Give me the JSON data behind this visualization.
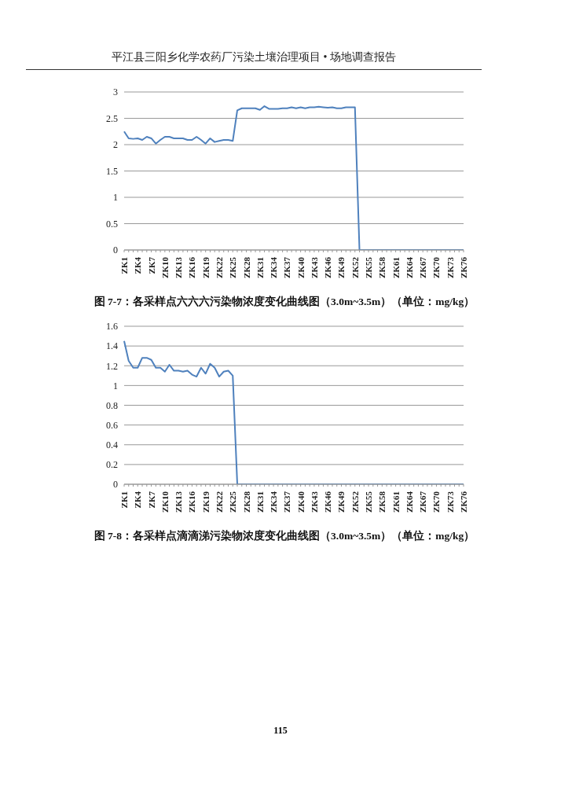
{
  "chart_data": [
    {
      "type": "line",
      "title": "图 7-7：各采样点六六六污染物浓度变化曲线图（3.0m~3.5m）（单位：mg/kg）",
      "annotations": [
        "平江县三阳乡化学农药厂污染土壤治理项目 • 场地调查报告"
      ],
      "categories": [
        "ZK1",
        null,
        null,
        "ZK4",
        null,
        null,
        "ZK7",
        null,
        null,
        "ZK10",
        null,
        null,
        "ZK13",
        null,
        null,
        "ZK16",
        null,
        null,
        "ZK19",
        null,
        null,
        "ZK22",
        null,
        null,
        "ZK25",
        null,
        null,
        "ZK28",
        null,
        null,
        "ZK31",
        null,
        null,
        "ZK34",
        null,
        null,
        "ZK37",
        null,
        null,
        "ZK40",
        null,
        null,
        "ZK43",
        null,
        null,
        "ZK46",
        null,
        null,
        "ZK49",
        null,
        null,
        "ZK52",
        null,
        null,
        "ZK55",
        null,
        null,
        "ZK58",
        null,
        null,
        "ZK61",
        null,
        null,
        "ZK64",
        null,
        null,
        "ZK67",
        null,
        null,
        "ZK70",
        null,
        null,
        "ZK73",
        null,
        null,
        "ZK76"
      ],
      "series": [
        {
          "color": "#4f81bd",
          "values": [
            2.25,
            2.12,
            2.11,
            2.12,
            2.09,
            2.15,
            2.12,
            2.02,
            2.09,
            2.15,
            2.15,
            2.12,
            2.12,
            2.12,
            2.09,
            2.09,
            2.15,
            2.09,
            2.02,
            2.12,
            2.05,
            2.07,
            2.09,
            2.09,
            2.07,
            2.65,
            2.69,
            2.69,
            2.69,
            2.69,
            2.66,
            2.73,
            2.68,
            2.68,
            2.68,
            2.69,
            2.69,
            2.71,
            2.69,
            2.71,
            2.69,
            2.71,
            2.71,
            2.72,
            2.71,
            2.7,
            2.71,
            2.69,
            2.69,
            2.71,
            2.71,
            2.71,
            0,
            0,
            0,
            0,
            0,
            0,
            0,
            0,
            0,
            0,
            0,
            0,
            0,
            0,
            0,
            0,
            0,
            0,
            0,
            0,
            0,
            0,
            0,
            0
          ]
        }
      ],
      "ylim": [
        0,
        3
      ],
      "yticks": [
        0,
        0.5,
        1,
        1.5,
        2,
        2.5,
        3
      ],
      "grid": "y",
      "legend": false,
      "marker": "none",
      "line_style": "solid"
    },
    {
      "type": "line",
      "title": "图 7-8：各采样点滴滴涕污染物浓度变化曲线图（3.0m~3.5m）（单位：mg/kg）",
      "annotations": [
        "115"
      ],
      "categories": [
        "ZK1",
        null,
        null,
        "ZK4",
        null,
        null,
        "ZK7",
        null,
        null,
        "ZK10",
        null,
        null,
        "ZK13",
        null,
        null,
        "ZK16",
        null,
        null,
        "ZK19",
        null,
        null,
        "ZK22",
        null,
        null,
        "ZK25",
        null,
        null,
        "ZK28",
        null,
        null,
        "ZK31",
        null,
        null,
        "ZK34",
        null,
        null,
        "ZK37",
        null,
        null,
        "ZK40",
        null,
        null,
        "ZK43",
        null,
        null,
        "ZK46",
        null,
        null,
        "ZK49",
        null,
        null,
        "ZK52",
        null,
        null,
        "ZK55",
        null,
        null,
        "ZK58",
        null,
        null,
        "ZK61",
        null,
        null,
        "ZK64",
        null,
        null,
        "ZK67",
        null,
        null,
        "ZK70",
        null,
        null,
        "ZK73",
        null,
        null,
        "ZK76"
      ],
      "series": [
        {
          "color": "#4f81bd",
          "values": [
            1.45,
            1.25,
            1.18,
            1.18,
            1.28,
            1.28,
            1.26,
            1.18,
            1.18,
            1.14,
            1.21,
            1.15,
            1.15,
            1.14,
            1.15,
            1.11,
            1.09,
            1.18,
            1.12,
            1.22,
            1.18,
            1.09,
            1.14,
            1.15,
            1.1,
            0,
            0,
            0,
            0,
            0,
            0,
            0,
            0,
            0,
            0,
            0,
            0,
            0,
            0,
            0,
            0,
            0,
            0,
            0,
            0,
            0,
            0,
            0,
            0,
            0,
            0,
            0,
            0,
            0,
            0,
            0,
            0,
            0,
            0,
            0,
            0,
            0,
            0,
            0,
            0,
            0,
            0,
            0,
            0,
            0,
            0,
            0,
            0,
            0,
            0,
            0
          ]
        }
      ],
      "ylim": [
        0,
        1.6
      ],
      "yticks": [
        0,
        0.2,
        0.4,
        0.6,
        0.8,
        1,
        1.2,
        1.4,
        1.6
      ],
      "grid": "y",
      "legend": false,
      "marker": "none",
      "line_style": "solid"
    }
  ]
}
